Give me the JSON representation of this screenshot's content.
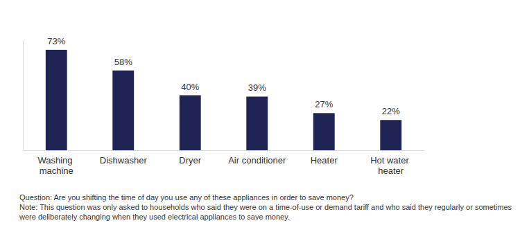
{
  "chart_data": {
    "type": "bar",
    "categories": [
      "Washing machine",
      "Dishwasher",
      "Dryer",
      "Air conditioner",
      "Heater",
      "Hot water heater"
    ],
    "values": [
      73,
      58,
      40,
      39,
      27,
      22
    ],
    "value_labels": [
      "73%",
      "58%",
      "40%",
      "39%",
      "27%",
      "22%"
    ],
    "color": "#1f2454",
    "ylim": [
      0,
      80
    ],
    "yticks": [],
    "grid": false,
    "data_labels": true,
    "tick_labels": "x",
    "annotations": [
      "Question: Are you shifting the time of day you use any of these appliances in order to save money?",
      "Note: This question was only asked to households who said they were on a time-of-use or demand tariff and who said they regularly or sometimes were deliberately changing when they used electrical appliances to save money."
    ]
  }
}
